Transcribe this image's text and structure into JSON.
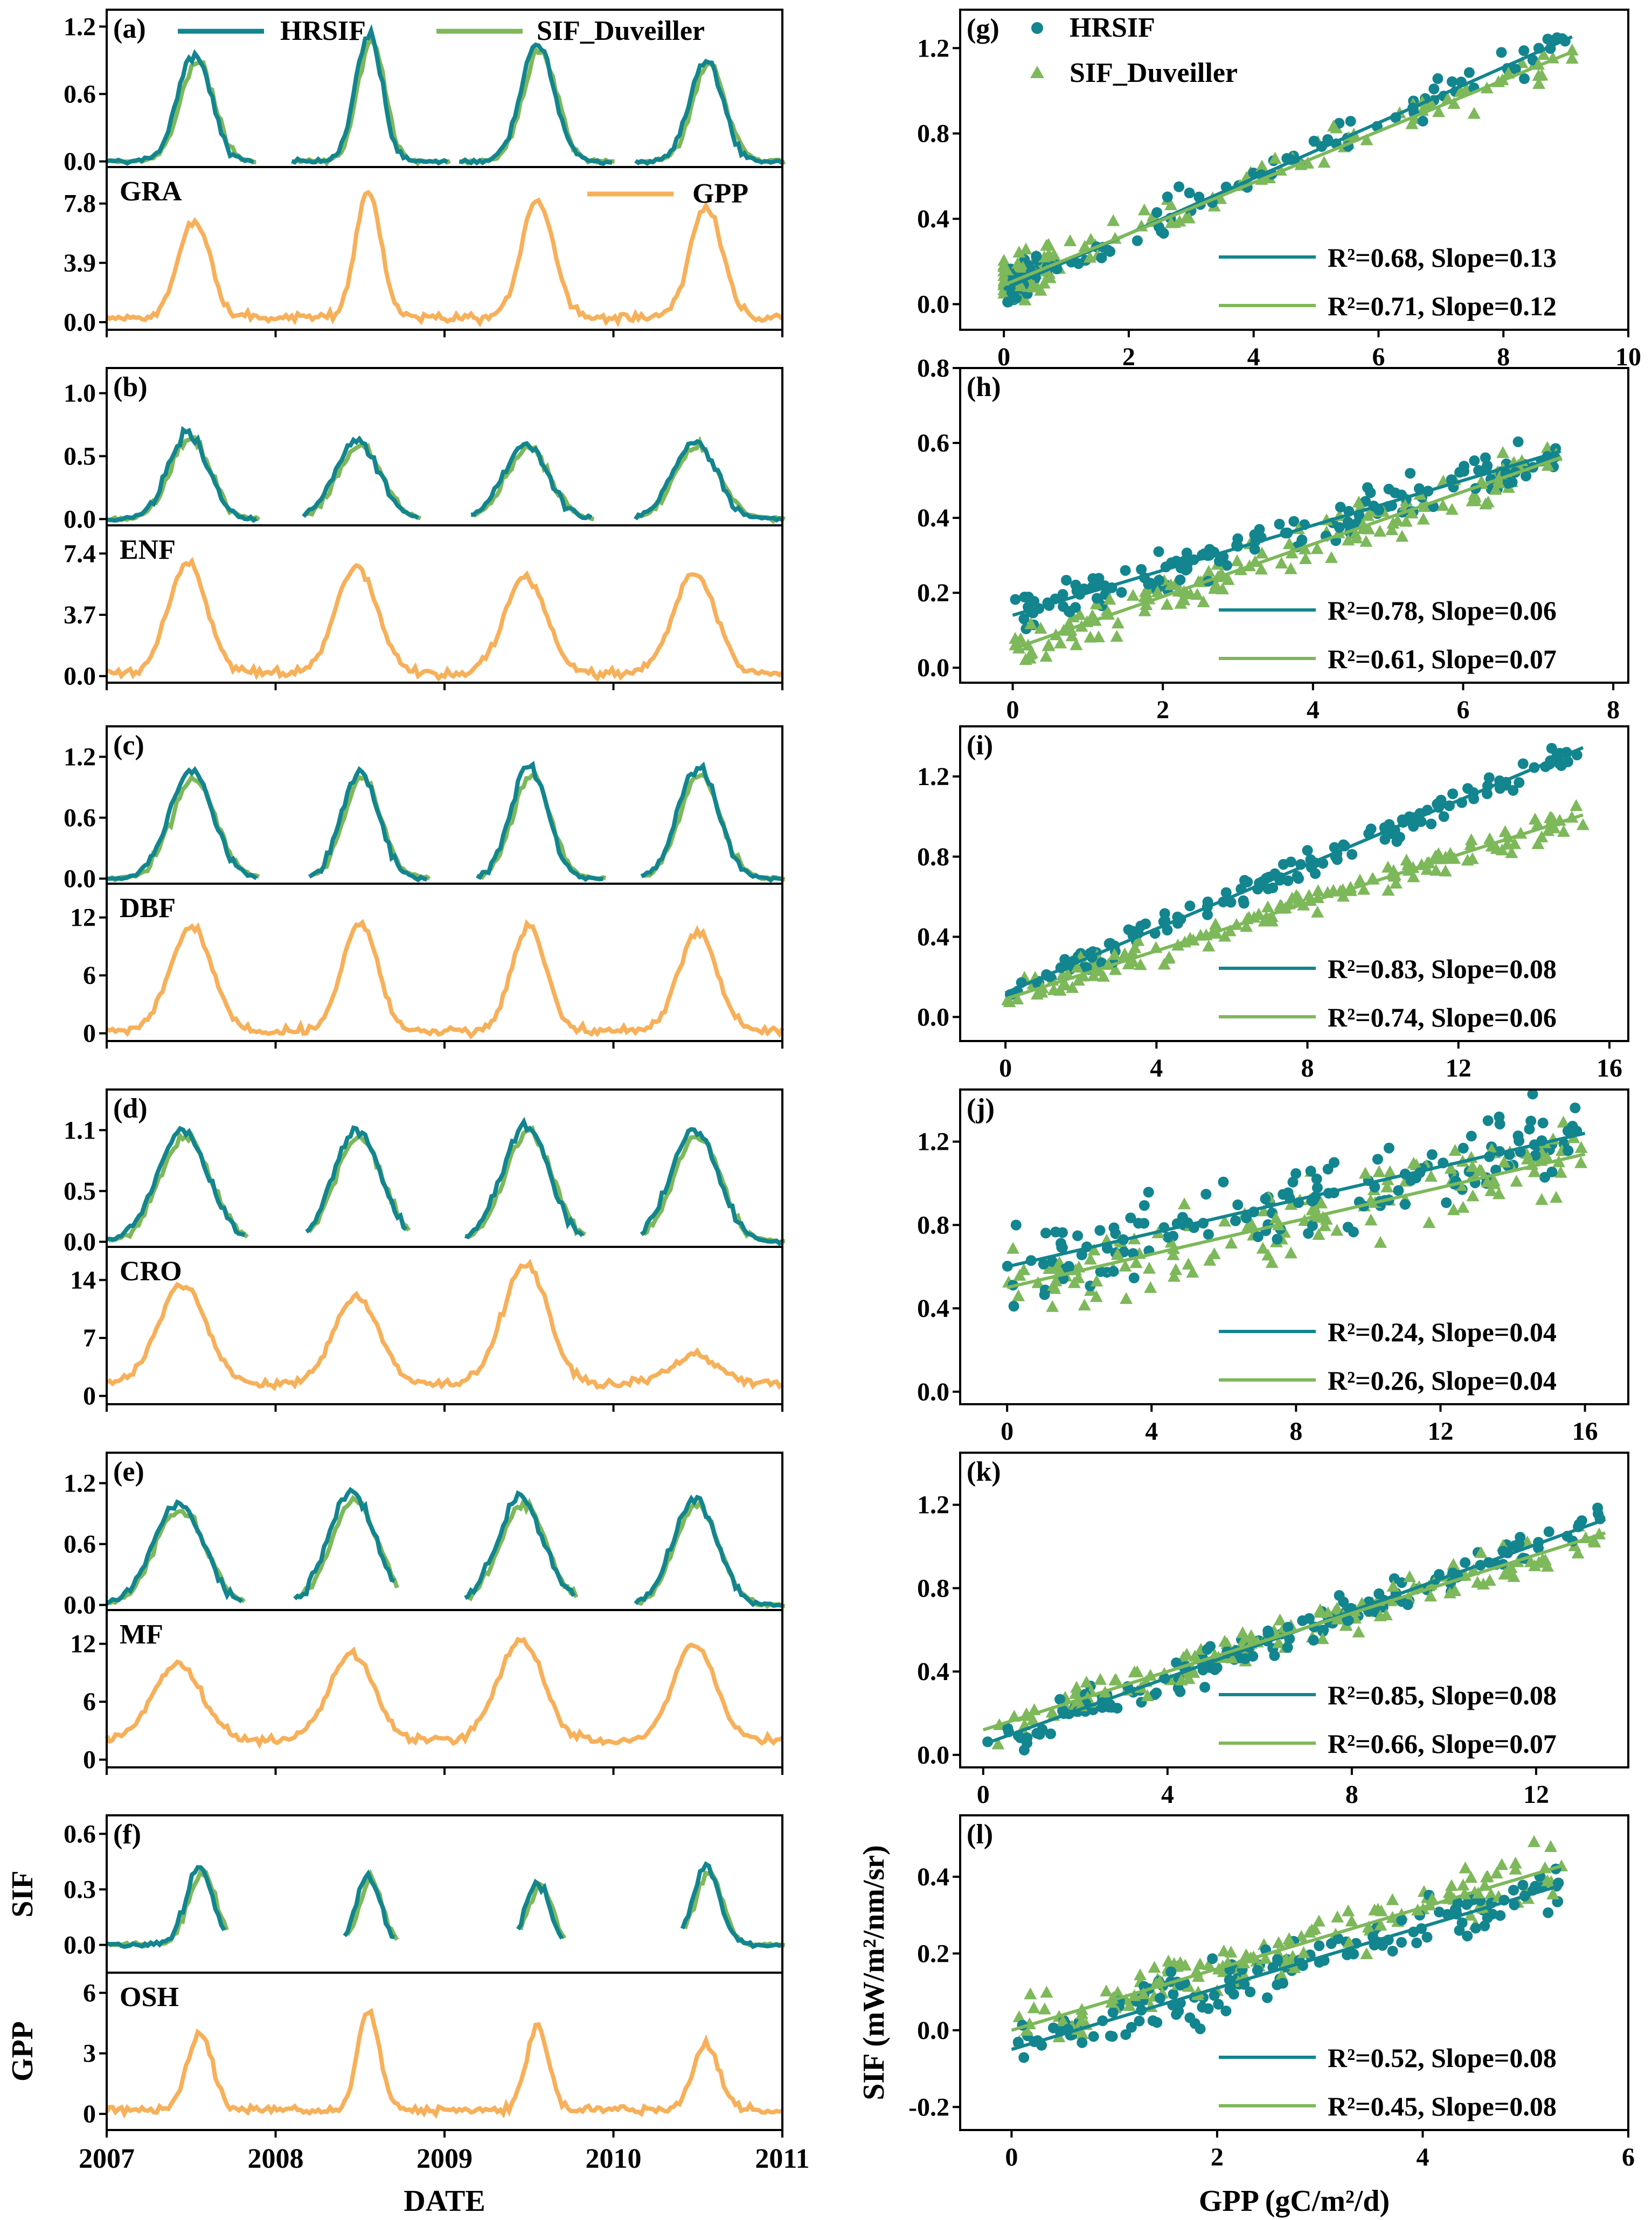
{
  "colors": {
    "hrsif": "#12858f",
    "sif_duveiller": "#7db85a",
    "gpp": "#f7b05a"
  },
  "chart_data": {
    "type": "line",
    "date_axis": {
      "label": "DATE",
      "ticks": [
        "2007",
        "2008",
        "2009",
        "2010",
        "2011"
      ]
    },
    "scatter_axis": {
      "xlabel": "GPP (gC/m²/d)",
      "ylabel": "SIF (mW/m²/nm/sr)"
    },
    "left_ylabels": {
      "sif": "SIF",
      "gpp": "GPP"
    },
    "legend": {
      "hrsif": "HRSIF",
      "sif_duveiller": "SIF_Duveiller",
      "gpp": "GPP"
    },
    "r2_label": "R²",
    "slope_label": "Slope",
    "sites": [
      {
        "panel": "(a)",
        "pft": "GRA",
        "sif_ticks": [
          "0.0",
          "0.6",
          "1.2"
        ],
        "sif_range": [
          -0.05,
          1.35
        ],
        "gpp_ticks": [
          "0.0",
          "3.9",
          "7.8"
        ],
        "gpp_range": [
          -0.5,
          10.2
        ],
        "peaks": [
          {
            "t": 0.52,
            "h": 0.95,
            "w": 0.1,
            "g": 6.6
          },
          {
            "t": 1.55,
            "h": 1.15,
            "w": 0.08,
            "g": 8.6
          },
          {
            "t": 2.55,
            "h": 1.05,
            "w": 0.1,
            "g": 8.0
          },
          {
            "t": 3.55,
            "h": 0.9,
            "w": 0.1,
            "g": 7.6
          }
        ],
        "gpp_base": 0.3,
        "gaps": [
          [
            0.88,
            1.08
          ],
          [
            2.02,
            2.08
          ],
          [
            3.0,
            3.12
          ]
        ],
        "scatter": {
          "panel": "(g)",
          "xticks": [
            "0",
            "2",
            "4",
            "6",
            "8",
            "10"
          ],
          "xrange": [
            -0.7,
            10
          ],
          "yticks": [
            "0.0",
            "0.4",
            "0.8",
            "1.2"
          ],
          "yrange": [
            -0.12,
            1.38
          ],
          "hrsif_fit": {
            "r2": "0.68",
            "slope": "0.13",
            "intercept": 0.07
          },
          "duv_fit": {
            "r2": "0.71",
            "slope": "0.12",
            "intercept": 0.09
          },
          "xmax": 9.1,
          "cluster": true,
          "noise": 0.14
        }
      },
      {
        "panel": "(b)",
        "pft": "ENF",
        "sif_ticks": [
          "0.0",
          "0.5",
          "1.0"
        ],
        "sif_range": [
          -0.05,
          1.2
        ],
        "gpp_ticks": [
          "0.0",
          "3.7",
          "7.4"
        ],
        "gpp_range": [
          -0.4,
          9.1
        ],
        "peaks": [
          {
            "t": 0.48,
            "h": 0.68,
            "w": 0.12,
            "g": 6.8
          },
          {
            "t": 1.48,
            "h": 0.62,
            "w": 0.13,
            "g": 6.6
          },
          {
            "t": 2.48,
            "h": 0.6,
            "w": 0.13,
            "g": 6.0
          },
          {
            "t": 3.48,
            "h": 0.62,
            "w": 0.13,
            "g": 6.3
          }
        ],
        "gpp_base": 0.15,
        "gaps": [
          [
            0.9,
            1.15
          ],
          [
            1.85,
            2.15
          ],
          [
            2.88,
            3.12
          ]
        ],
        "scatter": {
          "panel": "(h)",
          "xticks": [
            "0",
            "2",
            "4",
            "6",
            "8"
          ],
          "xrange": [
            -0.7,
            8.2
          ],
          "yticks": [
            "0.0",
            "0.2",
            "0.4",
            "0.6",
            "0.8"
          ],
          "yrange": [
            -0.04,
            0.8
          ],
          "hrsif_fit": {
            "r2": "0.78",
            "slope": "0.06",
            "intercept": 0.14
          },
          "duv_fit": {
            "r2": "0.61",
            "slope": "0.07",
            "intercept": 0.05
          },
          "xmax": 7.3,
          "cluster": false,
          "noise": 0.08
        }
      },
      {
        "panel": "(c)",
        "pft": "DBF",
        "sif_ticks": [
          "0.0",
          "0.6",
          "1.2"
        ],
        "sif_range": [
          -0.05,
          1.5
        ],
        "gpp_ticks": [
          "0",
          "6",
          "12"
        ],
        "gpp_range": [
          -0.8,
          15.5
        ],
        "peaks": [
          {
            "t": 0.5,
            "h": 1.05,
            "w": 0.13,
            "g": 11.0
          },
          {
            "t": 1.5,
            "h": 1.05,
            "w": 0.11,
            "g": 11.5
          },
          {
            "t": 2.5,
            "h": 1.1,
            "w": 0.11,
            "g": 11.0
          },
          {
            "t": 3.5,
            "h": 1.1,
            "w": 0.12,
            "g": 10.5
          }
        ],
        "gpp_base": 0.2,
        "gaps": [
          [
            0.9,
            1.2
          ],
          [
            1.9,
            2.18
          ],
          [
            2.95,
            3.15
          ]
        ],
        "scatter": {
          "panel": "(i)",
          "xticks": [
            "0",
            "4",
            "8",
            "12",
            "16"
          ],
          "xrange": [
            -1.2,
            16.5
          ],
          "yticks": [
            "0.0",
            "0.4",
            "0.8",
            "1.2"
          ],
          "yrange": [
            -0.12,
            1.45
          ],
          "hrsif_fit": {
            "r2": "0.83",
            "slope": "0.08",
            "intercept": 0.12
          },
          "duv_fit": {
            "r2": "0.74",
            "slope": "0.06",
            "intercept": 0.09
          },
          "xmax": 15.3,
          "cluster": false,
          "noise": 0.1
        }
      },
      {
        "panel": "(d)",
        "pft": "CRO",
        "sif_ticks": [
          "0.0",
          "0.5",
          "1.1"
        ],
        "sif_range": [
          -0.05,
          1.5
        ],
        "gpp_ticks": [
          "0",
          "7",
          "14"
        ],
        "gpp_range": [
          -1,
          18
        ],
        "peaks": [
          {
            "t": 0.45,
            "h": 1.1,
            "w": 0.15,
            "g": 13.5
          },
          {
            "t": 1.48,
            "h": 1.1,
            "w": 0.14,
            "g": 12.0
          },
          {
            "t": 2.48,
            "h": 1.15,
            "w": 0.14,
            "g": 16.0
          },
          {
            "t": 3.48,
            "h": 1.1,
            "w": 0.14,
            "g": 5.0
          }
        ],
        "gpp_base": 1.5,
        "gaps": [
          [
            0.82,
            1.18
          ],
          [
            1.78,
            2.12
          ],
          [
            2.82,
            3.15
          ]
        ],
        "scatter": {
          "panel": "(j)",
          "xticks": [
            "0",
            "4",
            "8",
            "12",
            "16"
          ],
          "xrange": [
            -1.3,
            17.2
          ],
          "yticks": [
            "0.0",
            "0.4",
            "0.8",
            "1.2"
          ],
          "yrange": [
            -0.06,
            1.45
          ],
          "hrsif_fit": {
            "r2": "0.24",
            "slope": "0.04",
            "intercept": 0.6
          },
          "duv_fit": {
            "r2": "0.26",
            "slope": "0.04",
            "intercept": 0.5
          },
          "xmax": 16,
          "cluster": false,
          "noise": 0.28
        }
      },
      {
        "panel": "(e)",
        "pft": "MF",
        "sif_ticks": [
          "0.0",
          "0.6",
          "1.2"
        ],
        "sif_range": [
          -0.05,
          1.5
        ],
        "gpp_ticks": [
          "0",
          "6",
          "12"
        ],
        "gpp_range": [
          -0.8,
          15.5
        ],
        "peaks": [
          {
            "t": 0.42,
            "h": 1.0,
            "w": 0.15,
            "g": 10.0
          },
          {
            "t": 1.45,
            "h": 1.1,
            "w": 0.14,
            "g": 11.0
          },
          {
            "t": 2.45,
            "h": 1.05,
            "w": 0.14,
            "g": 12.5
          },
          {
            "t": 3.48,
            "h": 1.05,
            "w": 0.13,
            "g": 12.0
          }
        ],
        "gpp_base": 2.0,
        "gaps": [
          [
            0.8,
            1.1
          ],
          [
            1.72,
            2.12
          ],
          [
            2.78,
            3.12
          ]
        ],
        "scatter": {
          "panel": "(k)",
          "xticks": [
            "0",
            "4",
            "8",
            "12"
          ],
          "xrange": [
            -0.5,
            14
          ],
          "yticks": [
            "0.0",
            "0.4",
            "0.8",
            "1.2"
          ],
          "yrange": [
            -0.06,
            1.45
          ],
          "hrsif_fit": {
            "r2": "0.85",
            "slope": "0.08",
            "intercept": 0.05
          },
          "duv_fit": {
            "r2": "0.66",
            "slope": "0.07",
            "intercept": 0.12
          },
          "xmax": 13.5,
          "cluster": false,
          "noise": 0.12
        }
      },
      {
        "panel": "(f)",
        "pft": "OSH",
        "sif_ticks": [
          "0.0",
          "0.3",
          "0.6"
        ],
        "sif_range": [
          -0.15,
          0.7
        ],
        "gpp_ticks": [
          "0",
          "3",
          "6"
        ],
        "gpp_range": [
          -0.8,
          7
        ],
        "peaks": [
          {
            "t": 0.55,
            "h": 0.42,
            "w": 0.08,
            "g": 4.0
          },
          {
            "t": 1.55,
            "h": 0.38,
            "w": 0.07,
            "g": 5.0
          },
          {
            "t": 2.55,
            "h": 0.34,
            "w": 0.07,
            "g": 4.3
          },
          {
            "t": 3.55,
            "h": 0.42,
            "w": 0.08,
            "g": 3.5
          }
        ],
        "gpp_base": 0.2,
        "gaps": [
          [
            0.7,
            1.4
          ],
          [
            1.72,
            2.42
          ],
          [
            2.7,
            3.4
          ]
        ],
        "scatter": {
          "panel": "(l)",
          "xticks": [
            "0",
            "2",
            "4",
            "6"
          ],
          "xrange": [
            -0.5,
            6
          ],
          "yticks": [
            "-0.2",
            "0.0",
            "0.2",
            "0.4"
          ],
          "yrange": [
            -0.26,
            0.56
          ],
          "hrsif_fit": {
            "r2": "0.52",
            "slope": "0.08",
            "intercept": -0.05
          },
          "duv_fit": {
            "r2": "0.45",
            "slope": "0.08",
            "intercept": 0.0
          },
          "xmax": 5.35,
          "cluster": false,
          "noise": 0.1
        }
      }
    ]
  }
}
